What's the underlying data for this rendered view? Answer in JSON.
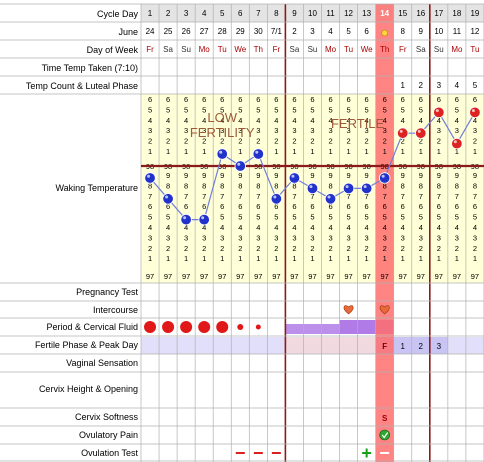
{
  "row_labels": {
    "cycle_day": "Cycle Day",
    "month": "June",
    "day_of_week": "Day of Week",
    "time_taken": "Time Temp Taken (7:10)",
    "temp_count": "Temp Count & Luteal Phase",
    "waking_temperature": "Waking Temperature",
    "pregnancy_test": "Pregnancy Test",
    "intercourse": "Intercourse",
    "period_fluid": "Period & Cervical Fluid",
    "fertile_phase": "Fertile Phase & Peak Day",
    "vaginal_sensation": "Vaginal Sensation",
    "cervix_height": "Cervix Height & Opening",
    "cervix_softness": "Cervix Softness",
    "ovulatory_pain": "Ovulatory Pain",
    "ovulation_test": "Ovulation Test"
  },
  "cycle_days": [
    "1",
    "2",
    "3",
    "4",
    "5",
    "6",
    "7",
    "8",
    "9",
    "10",
    "11",
    "12",
    "13",
    "14",
    "15",
    "16",
    "17",
    "18",
    "19"
  ],
  "dates": [
    "24",
    "25",
    "26",
    "27",
    "28",
    "29",
    "30",
    "7/1",
    "2",
    "3",
    "4",
    "5",
    "6",
    "",
    "8",
    "9",
    "10",
    "11",
    "12"
  ],
  "weekdays": [
    "Fr",
    "Sa",
    "Su",
    "Mo",
    "Tu",
    "We",
    "Th",
    "Fr",
    "Sa",
    "Su",
    "Mo",
    "Tu",
    "We",
    "Th",
    "Fr",
    "Sa",
    "Su",
    "Mo",
    "Tu"
  ],
  "temp_count": [
    "",
    "",
    "",
    "",
    "",
    "",
    "",
    "",
    "",
    "",
    "",
    "",
    "",
    "",
    "1",
    "2",
    "3",
    "4",
    "5"
  ],
  "fertile_labels": [
    "",
    "",
    "",
    "",
    "",
    "",
    "",
    "",
    "",
    "",
    "",
    "",
    "",
    "F",
    "1",
    "2",
    "3",
    "",
    ""
  ],
  "temp_scale_top": [
    "6",
    "5",
    "4",
    "3",
    "2",
    "1"
  ],
  "temp_scale_bottom": [
    "9",
    "8",
    "7",
    "6",
    "5",
    "4",
    "3",
    "2",
    "1"
  ],
  "baseline_label": "98",
  "floor_label": "97",
  "annotations": {
    "low_fertility": "LOW FERTILITY",
    "fertile": "FERTILE"
  },
  "chart_data": {
    "type": "line",
    "x": [
      1,
      2,
      3,
      4,
      5,
      6,
      7,
      8,
      9,
      10,
      11,
      12,
      13,
      14,
      15,
      16,
      17,
      18,
      19
    ],
    "temperatures_f": [
      97.9,
      97.7,
      97.5,
      97.5,
      98.1,
      98.0,
      98.1,
      97.7,
      97.9,
      97.8,
      97.7,
      97.8,
      97.8,
      97.9,
      98.3,
      98.3,
      98.5,
      98.2,
      98.5
    ],
    "coverline": 98.0,
    "ylim": [
      97.0,
      98.6
    ],
    "peak_day": 14,
    "period_days": [
      1,
      2,
      3,
      4,
      5,
      6,
      7
    ]
  },
  "colors": {
    "cell_bg": "#ffffd8",
    "coverline": "#8b1a1a",
    "ovulation_column": "#ff6f6f",
    "fertile_band": "#c8c4f4",
    "fluid_purple": "#b07be6",
    "pre_ovulation_dot": "#2233cc",
    "post_ovulation_dot": "#dd2222"
  }
}
